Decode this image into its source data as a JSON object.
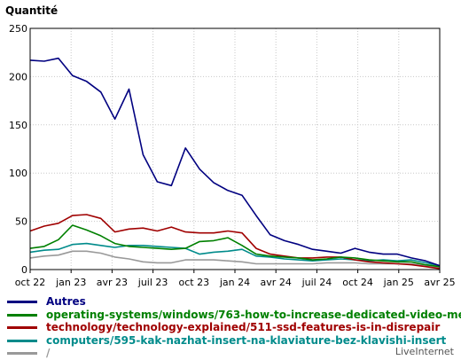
{
  "chart_data": {
    "type": "line",
    "ylabel": "Quantité",
    "ylim": [
      0,
      250
    ],
    "yticks": [
      0,
      50,
      100,
      150,
      200,
      250
    ],
    "x_tick_labels": [
      "oct 22",
      "jan 23",
      "avr 23",
      "juil 23",
      "oct 23",
      "jan 24",
      "avr 24",
      "juil 24",
      "oct 24",
      "jan 25",
      "avr 25"
    ],
    "grid": true,
    "legend_placement": "bottom",
    "series": [
      {
        "name": "Autres",
        "color": "#000080",
        "values": [
          217,
          216,
          219,
          201,
          195,
          184,
          156,
          187,
          119,
          91,
          87,
          126,
          104,
          90,
          82,
          77,
          56,
          36,
          30,
          26,
          21,
          19,
          17,
          22,
          18,
          16,
          16,
          12,
          9,
          4
        ]
      },
      {
        "name": "operating-systems/windows/763-how-to-increase-dedicated-video-memo",
        "color": "#008000",
        "values": [
          22,
          24,
          31,
          46,
          41,
          35,
          27,
          24,
          23,
          22,
          21,
          22,
          29,
          30,
          33,
          25,
          16,
          14,
          13,
          12,
          10,
          11,
          13,
          12,
          10,
          9,
          8,
          8,
          5,
          3
        ]
      },
      {
        "name": "technology/technology-explained/511-ssd-features-is-in-disrepair",
        "color": "#a00000",
        "values": [
          40,
          45,
          48,
          56,
          57,
          53,
          39,
          42,
          43,
          40,
          44,
          39,
          38,
          38,
          40,
          38,
          22,
          16,
          14,
          12,
          12,
          13,
          13,
          10,
          8,
          7,
          6,
          5,
          3,
          1
        ]
      },
      {
        "name": "computers/595-kak-nazhat-insert-na-klaviature-bez-klavishi-insert",
        "color": "#008b8b",
        "values": [
          18,
          20,
          21,
          26,
          27,
          25,
          23,
          25,
          25,
          24,
          23,
          22,
          16,
          18,
          19,
          21,
          14,
          13,
          11,
          10,
          9,
          10,
          11,
          10,
          9,
          10,
          9,
          10,
          7,
          4
        ]
      },
      {
        "name": "/",
        "color": "#999999",
        "values": [
          12,
          14,
          15,
          19,
          19,
          17,
          13,
          11,
          8,
          7,
          7,
          10,
          10,
          10,
          9,
          8,
          6,
          6,
          6,
          6,
          6,
          7,
          7,
          7,
          6,
          6,
          6,
          6,
          4,
          2
        ]
      }
    ]
  },
  "brand": "LiveInternet"
}
